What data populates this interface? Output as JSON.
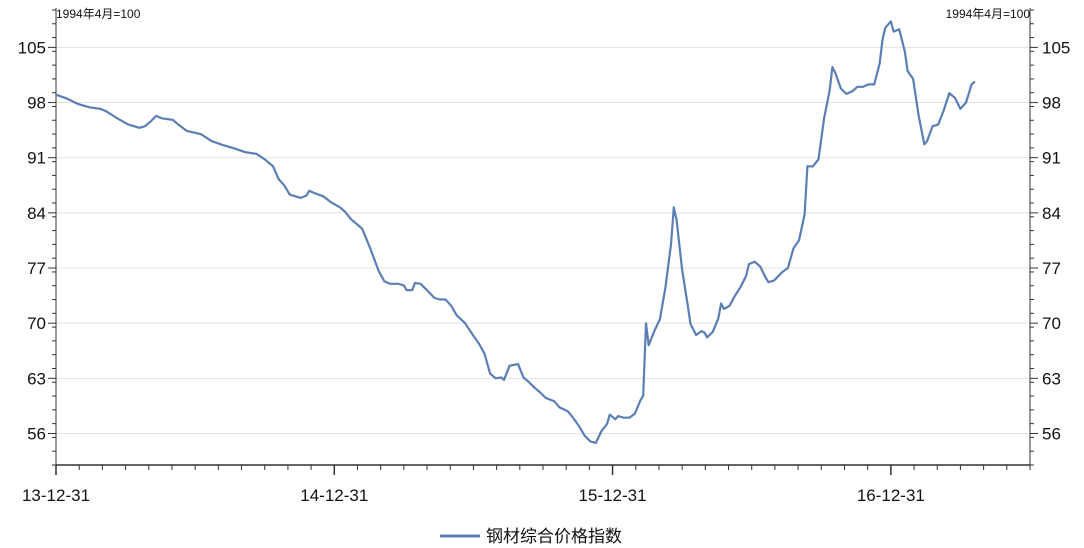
{
  "chart_data": {
    "type": "line",
    "title": "",
    "unit_left": "1994年4月=100",
    "unit_right": "1994年4月=100",
    "ylim": [
      52,
      110
    ],
    "y_ticks": [
      56,
      63,
      70,
      77,
      84,
      91,
      98,
      105
    ],
    "x_ticks": [
      "13-12-31",
      "14-12-31",
      "15-12-31",
      "16-12-31"
    ],
    "x_range_years": [
      0,
      3.5
    ],
    "grid": "horizontal",
    "legend_position": "bottom",
    "line_color": "#5b7fb5",
    "series": [
      {
        "name": "钢材综合价格指数",
        "points": [
          [
            0.0,
            99.0
          ],
          [
            0.04,
            98.5
          ],
          [
            0.08,
            97.8
          ],
          [
            0.12,
            97.4
          ],
          [
            0.16,
            97.2
          ],
          [
            0.18,
            96.9
          ],
          [
            0.22,
            96.0
          ],
          [
            0.26,
            95.2
          ],
          [
            0.3,
            94.8
          ],
          [
            0.32,
            95.0
          ],
          [
            0.34,
            95.6
          ],
          [
            0.36,
            96.3
          ],
          [
            0.38,
            96.0
          ],
          [
            0.42,
            95.8
          ],
          [
            0.44,
            95.2
          ],
          [
            0.47,
            94.4
          ],
          [
            0.52,
            94.0
          ],
          [
            0.56,
            93.1
          ],
          [
            0.6,
            92.6
          ],
          [
            0.64,
            92.2
          ],
          [
            0.68,
            91.7
          ],
          [
            0.72,
            91.5
          ],
          [
            0.75,
            90.8
          ],
          [
            0.78,
            89.9
          ],
          [
            0.8,
            88.3
          ],
          [
            0.82,
            87.5
          ],
          [
            0.84,
            86.3
          ],
          [
            0.88,
            85.9
          ],
          [
            0.9,
            86.2
          ],
          [
            0.91,
            86.8
          ],
          [
            0.93,
            86.5
          ],
          [
            0.96,
            86.1
          ],
          [
            0.99,
            85.3
          ],
          [
            1.02,
            84.7
          ],
          [
            1.04,
            84.1
          ],
          [
            1.06,
            83.2
          ],
          [
            1.1,
            82.0
          ],
          [
            1.13,
            79.4
          ],
          [
            1.16,
            76.6
          ],
          [
            1.18,
            75.3
          ],
          [
            1.2,
            75.0
          ],
          [
            1.23,
            75.0
          ],
          [
            1.25,
            74.8
          ],
          [
            1.26,
            74.2
          ],
          [
            1.28,
            74.2
          ],
          [
            1.29,
            75.1
          ],
          [
            1.31,
            75.0
          ],
          [
            1.33,
            74.3
          ],
          [
            1.36,
            73.2
          ],
          [
            1.38,
            73.0
          ],
          [
            1.4,
            73.0
          ],
          [
            1.42,
            72.2
          ],
          [
            1.44,
            71.0
          ],
          [
            1.47,
            70.0
          ],
          [
            1.5,
            68.4
          ],
          [
            1.52,
            67.4
          ],
          [
            1.54,
            66.1
          ],
          [
            1.56,
            63.6
          ],
          [
            1.58,
            63.0
          ],
          [
            1.6,
            63.1
          ],
          [
            1.61,
            62.8
          ],
          [
            1.63,
            64.6
          ],
          [
            1.66,
            64.8
          ],
          [
            1.68,
            63.1
          ],
          [
            1.7,
            62.5
          ],
          [
            1.72,
            61.8
          ],
          [
            1.74,
            61.2
          ],
          [
            1.76,
            60.5
          ],
          [
            1.79,
            60.1
          ],
          [
            1.81,
            59.3
          ],
          [
            1.84,
            58.8
          ],
          [
            1.86,
            57.9
          ],
          [
            1.88,
            56.9
          ],
          [
            1.9,
            55.7
          ],
          [
            1.92,
            55.0
          ],
          [
            1.94,
            54.8
          ],
          [
            1.96,
            56.3
          ],
          [
            1.98,
            57.2
          ],
          [
            1.99,
            58.4
          ],
          [
            2.01,
            57.8
          ],
          [
            2.02,
            58.2
          ],
          [
            2.04,
            58.0
          ],
          [
            2.06,
            58.0
          ],
          [
            2.08,
            58.5
          ],
          [
            2.1,
            60.2
          ],
          [
            2.11,
            60.8
          ],
          [
            2.12,
            70.0
          ],
          [
            2.13,
            67.2
          ],
          [
            2.15,
            69.0
          ],
          [
            2.17,
            70.5
          ],
          [
            2.19,
            74.5
          ],
          [
            2.21,
            80.0
          ],
          [
            2.22,
            84.7
          ],
          [
            2.23,
            83.1
          ],
          [
            2.25,
            76.8
          ],
          [
            2.27,
            72.3
          ],
          [
            2.28,
            69.9
          ],
          [
            2.3,
            68.5
          ],
          [
            2.32,
            69.0
          ],
          [
            2.33,
            68.8
          ],
          [
            2.34,
            68.2
          ],
          [
            2.36,
            68.9
          ],
          [
            2.38,
            70.6
          ],
          [
            2.39,
            72.5
          ],
          [
            2.4,
            71.8
          ],
          [
            2.42,
            72.2
          ],
          [
            2.44,
            73.5
          ],
          [
            2.46,
            74.6
          ],
          [
            2.48,
            76.0
          ],
          [
            2.49,
            77.5
          ],
          [
            2.51,
            77.8
          ],
          [
            2.53,
            77.2
          ],
          [
            2.55,
            75.8
          ],
          [
            2.56,
            75.2
          ],
          [
            2.58,
            75.4
          ],
          [
            2.61,
            76.5
          ],
          [
            2.63,
            77.0
          ],
          [
            2.65,
            79.5
          ],
          [
            2.67,
            80.5
          ],
          [
            2.69,
            83.8
          ],
          [
            2.7,
            89.9
          ],
          [
            2.72,
            89.9
          ],
          [
            2.74,
            90.8
          ],
          [
            2.76,
            96.0
          ],
          [
            2.78,
            99.5
          ],
          [
            2.79,
            102.5
          ],
          [
            2.8,
            101.8
          ],
          [
            2.82,
            99.8
          ],
          [
            2.84,
            99.1
          ],
          [
            2.86,
            99.4
          ],
          [
            2.88,
            100.0
          ],
          [
            2.9,
            100.0
          ],
          [
            2.92,
            100.3
          ],
          [
            2.94,
            100.3
          ],
          [
            2.96,
            103.0
          ],
          [
            2.97,
            106.0
          ],
          [
            2.98,
            107.5
          ],
          [
            3.0,
            108.3
          ],
          [
            3.01,
            107.0
          ],
          [
            3.03,
            107.3
          ],
          [
            3.05,
            104.5
          ],
          [
            3.06,
            102.0
          ],
          [
            3.08,
            101.0
          ],
          [
            3.1,
            96.3
          ],
          [
            3.12,
            92.7
          ],
          [
            3.13,
            93.1
          ],
          [
            3.15,
            95.0
          ],
          [
            3.17,
            95.2
          ],
          [
            3.19,
            97.0
          ],
          [
            3.21,
            99.2
          ],
          [
            3.23,
            98.6
          ],
          [
            3.25,
            97.2
          ],
          [
            3.27,
            98.0
          ],
          [
            3.29,
            100.3
          ],
          [
            3.3,
            100.6
          ]
        ]
      }
    ]
  }
}
